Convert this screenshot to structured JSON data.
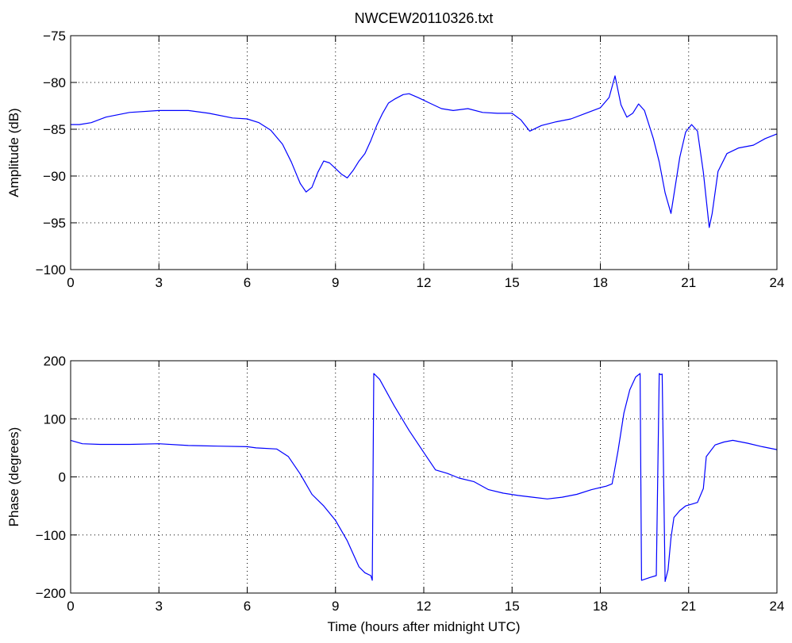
{
  "chart_data": [
    {
      "type": "line",
      "title": "NWCEW20110326.txt",
      "xlabel": "",
      "ylabel": "Amplitude (dB)",
      "xlim": [
        0,
        24
      ],
      "ylim": [
        -100,
        -75
      ],
      "xticks": [
        "0",
        "3",
        "6",
        "9",
        "12",
        "15",
        "18",
        "21",
        "24"
      ],
      "yticks": [
        "−75",
        "−80",
        "−85",
        "−90",
        "−95",
        "−100"
      ],
      "grid": true,
      "color": "#0000ff",
      "series": [
        {
          "x": [
            0,
            0.3,
            0.7,
            1.2,
            2,
            3,
            4,
            4.7,
            5.5,
            6,
            6.4,
            6.8,
            7.2,
            7.5,
            7.8,
            8.0,
            8.2,
            8.4,
            8.6,
            8.8,
            9.0,
            9.2,
            9.4,
            9.6,
            9.8,
            10.0,
            10.2,
            10.4,
            10.6,
            10.8,
            11.0,
            11.3,
            11.5,
            11.8,
            12.2,
            12.6,
            13.0,
            13.5,
            14.0,
            14.5,
            15.0,
            15.3,
            15.6,
            16.0,
            16.5,
            17.0,
            17.5,
            18.0,
            18.3,
            18.5,
            18.7,
            18.9,
            19.1,
            19.3,
            19.5,
            19.8,
            20.0,
            20.2,
            20.4,
            20.5,
            20.7,
            20.9,
            21.1,
            21.3,
            21.5,
            21.7,
            21.8,
            22.0,
            22.3,
            22.7,
            23.2,
            23.6,
            24.0
          ],
          "y": [
            -84.5,
            -84.5,
            -84.3,
            -83.7,
            -83.2,
            -83.0,
            -83.0,
            -83.3,
            -83.8,
            -83.9,
            -84.3,
            -85.1,
            -86.6,
            -88.5,
            -90.8,
            -91.7,
            -91.2,
            -89.6,
            -88.4,
            -88.6,
            -89.2,
            -89.8,
            -90.2,
            -89.4,
            -88.4,
            -87.6,
            -86.2,
            -84.6,
            -83.3,
            -82.2,
            -81.8,
            -81.3,
            -81.2,
            -81.6,
            -82.2,
            -82.8,
            -83.0,
            -82.8,
            -83.2,
            -83.3,
            -83.3,
            -84.0,
            -85.2,
            -84.6,
            -84.2,
            -83.9,
            -83.3,
            -82.7,
            -81.6,
            -79.3,
            -82.4,
            -83.7,
            -83.3,
            -82.3,
            -83.0,
            -86.0,
            -88.5,
            -91.8,
            -94.0,
            -92.0,
            -88.0,
            -85.3,
            -84.5,
            -85.2,
            -89.6,
            -95.5,
            -94.0,
            -89.5,
            -87.6,
            -87.0,
            -86.7,
            -86.0,
            -85.5
          ]
        }
      ]
    },
    {
      "type": "line",
      "title": "",
      "xlabel": "Time (hours after midnight UTC)",
      "ylabel": "Phase (degrees)",
      "xlim": [
        0,
        24
      ],
      "ylim": [
        -200,
        200
      ],
      "xticks": [
        "0",
        "3",
        "6",
        "9",
        "12",
        "15",
        "18",
        "21",
        "24"
      ],
      "yticks": [
        "200",
        "100",
        "0",
        "−100",
        "−200"
      ],
      "grid": true,
      "color": "#0000ff",
      "series": [
        {
          "x": [
            0,
            0.4,
            1.0,
            2.0,
            3.0,
            4.0,
            5.0,
            6.0,
            6.3,
            7.0,
            7.4,
            7.8,
            8.2,
            8.6,
            9.0,
            9.4,
            9.8,
            10.0,
            10.2,
            10.25,
            10.3,
            10.5,
            11.0,
            11.5,
            12.0,
            12.4,
            12.8,
            13.2,
            13.7,
            14.2,
            14.7,
            15.2,
            15.7,
            16.2,
            16.7,
            17.2,
            17.7,
            18.2,
            18.4,
            18.6,
            18.8,
            19.0,
            19.2,
            19.35,
            19.4,
            19.7,
            19.9,
            20.0,
            20.05,
            20.1,
            20.2,
            20.3,
            20.4,
            20.5,
            20.7,
            20.9,
            21.1,
            21.3,
            21.5,
            21.6,
            21.9,
            22.2,
            22.5,
            23.0,
            23.5,
            24.0
          ],
          "y": [
            63,
            57,
            56,
            56,
            57,
            54,
            53,
            52,
            50,
            48,
            35,
            5,
            -30,
            -50,
            -75,
            -110,
            -155,
            -165,
            -170,
            -178,
            178,
            168,
            122,
            80,
            42,
            12,
            6,
            -2,
            -8,
            -22,
            -28,
            -32,
            -35,
            -38,
            -35,
            -30,
            -22,
            -16,
            -12,
            45,
            110,
            150,
            172,
            178,
            -178,
            -173,
            -170,
            178,
            176,
            177,
            -180,
            -160,
            -105,
            -70,
            -58,
            -50,
            -47,
            -44,
            -20,
            35,
            55,
            60,
            63,
            58,
            52,
            47
          ]
        }
      ]
    }
  ]
}
